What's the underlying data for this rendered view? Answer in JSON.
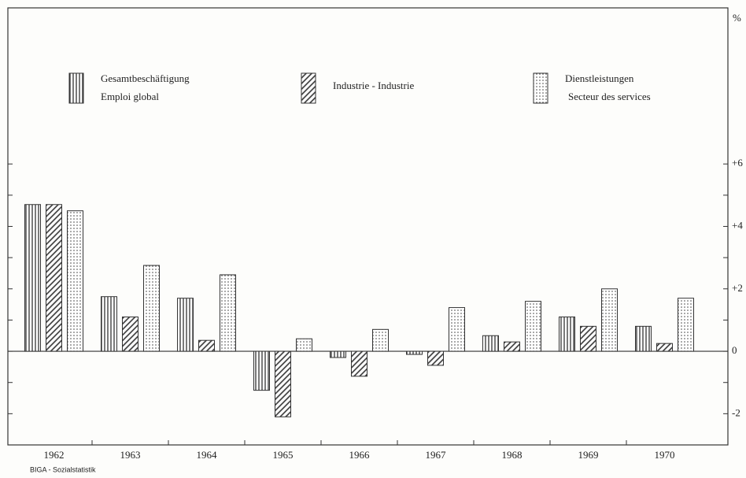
{
  "chart_data": {
    "type": "bar",
    "unit": "%",
    "source": "BIGA - Sozialstatistik",
    "categories": [
      "1962",
      "1963",
      "1964",
      "1965",
      "1966",
      "1967",
      "1968",
      "1969",
      "1970"
    ],
    "series": [
      {
        "name": [
          "Gesamtbeschäftigung",
          "Emploi global"
        ],
        "color": "#333333",
        "pattern": "vertical",
        "values": [
          4.7,
          1.75,
          1.7,
          -1.25,
          -0.2,
          -0.1,
          0.5,
          1.1,
          0.8
        ]
      },
      {
        "name": [
          "Industrie - Industrie"
        ],
        "color": "#333333",
        "pattern": "diagonal",
        "values": [
          4.7,
          1.1,
          0.35,
          -2.1,
          -0.8,
          -0.45,
          0.3,
          0.8,
          0.25
        ]
      },
      {
        "name": [
          "Dienstleistungen",
          "Secteur des services"
        ],
        "color": "#333333",
        "pattern": "dots",
        "values": [
          4.5,
          2.75,
          2.45,
          0.4,
          0.7,
          1.4,
          1.6,
          2.0,
          1.7
        ]
      }
    ],
    "ylim": [
      -3,
      11
    ],
    "yticks": [
      {
        "value": 6,
        "label": "+6"
      },
      {
        "value": 4,
        "label": "+4"
      },
      {
        "value": 2,
        "label": "+2"
      },
      0,
      -2
    ],
    "yminorticks": [
      5,
      3,
      1,
      -1
    ]
  }
}
